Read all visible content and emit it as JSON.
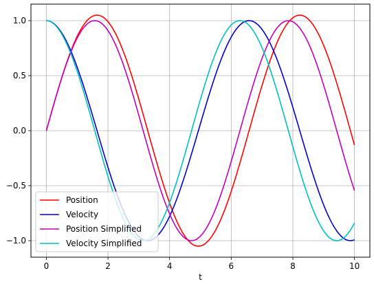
{
  "chart_data": {
    "type": "line",
    "title": "",
    "xlabel": "t",
    "ylabel": "",
    "xlim": [
      -0.5,
      10.5
    ],
    "ylim": [
      -1.15,
      1.15
    ],
    "grid": true,
    "legend_position": "lower-left",
    "x_ticks": [
      0,
      2,
      4,
      6,
      8,
      10
    ],
    "x_tick_labels": [
      "0",
      "2",
      "4",
      "6",
      "8",
      "10"
    ],
    "y_ticks": [
      -1.0,
      -0.5,
      0.0,
      0.5,
      1.0
    ],
    "y_tick_labels": [
      "−1.0",
      "−0.5",
      "0.0",
      "0.5",
      "1.0"
    ],
    "x": {
      "start": 0,
      "end": 10,
      "samples": 201
    },
    "series": [
      {
        "name": "Position",
        "color": "#ff0000",
        "amplitude": 1.05,
        "omega": 0.955,
        "phase": 0,
        "func": "sin",
        "start_value": 0.0,
        "end_value": -0.14
      },
      {
        "name": "Velocity",
        "color": "#0000cc",
        "amplitude": 1.0,
        "omega": 0.955,
        "phase": 0,
        "func": "cos",
        "start_value": 1.0,
        "end_value": -0.99
      },
      {
        "name": "Position Simplified",
        "color": "#bf00bf",
        "amplitude": 1.0,
        "omega": 1.0,
        "phase": 0,
        "func": "sin",
        "start_value": 0.0,
        "end_value": -0.54
      },
      {
        "name": "Velocity Simplified",
        "color": "#00bfbf",
        "amplitude": 1.0,
        "omega": 1.0,
        "phase": 0,
        "func": "cos",
        "start_value": 1.0,
        "end_value": -0.84
      }
    ]
  }
}
